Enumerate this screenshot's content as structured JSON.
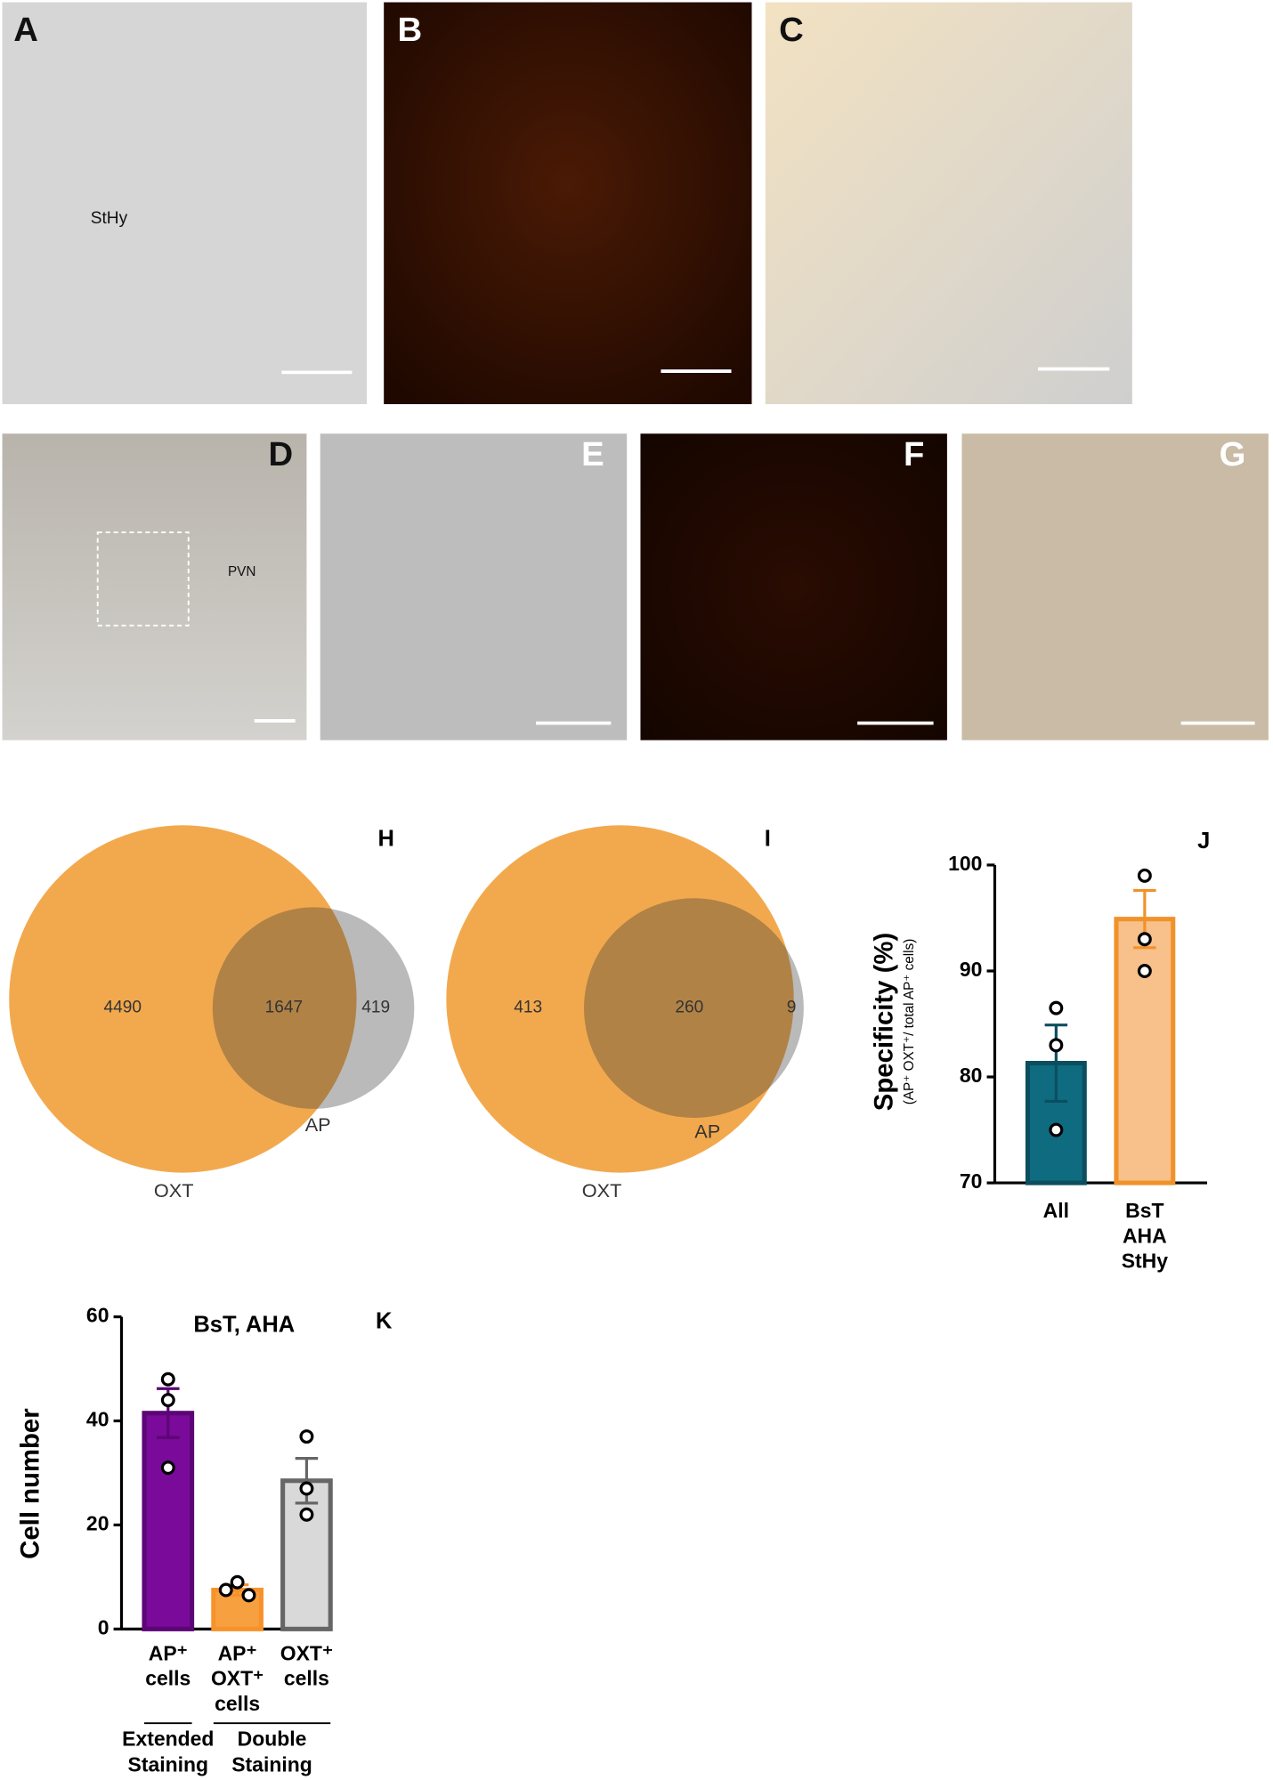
{
  "image_panels": [
    {
      "label": "A",
      "annotation": "StHy"
    },
    {
      "label": "B"
    },
    {
      "label": "C"
    },
    {
      "label": "D",
      "annotation": "PVN"
    },
    {
      "label": "E"
    },
    {
      "label": "F"
    },
    {
      "label": "G"
    }
  ],
  "chart_data": [
    {
      "type": "venn",
      "label": "H",
      "sets": [
        {
          "name": "OXT",
          "color": "#f2a94e"
        },
        {
          "name": "AP",
          "color": "#3a3a3a"
        }
      ],
      "values": [
        4490,
        1647,
        419
      ]
    },
    {
      "type": "venn",
      "label": "I",
      "sets": [
        {
          "name": "OXT",
          "color": "#f2a94e"
        },
        {
          "name": "AP",
          "color": "#3a3a3a"
        }
      ],
      "values": [
        413,
        260,
        9
      ]
    },
    {
      "type": "bar",
      "label": "J",
      "y_label": "Specificity (%)",
      "y_sublabel": "(AP⁺ OXT⁺/ total AP⁺ cells)",
      "categories": [
        "All",
        "BsT AHA StHy"
      ],
      "values": [
        81.3,
        94.9
      ],
      "errors": [
        3.6,
        2.7
      ],
      "points": [
        [
          86.5,
          83,
          75
        ],
        [
          99,
          93,
          90
        ]
      ],
      "colors": [
        "#0e6b80",
        "#f8c08a"
      ],
      "edge_colors": [
        "#0b4f5f",
        "#f0922a"
      ],
      "ylim": [
        70,
        100
      ],
      "yticks": [
        70,
        80,
        90,
        100
      ]
    },
    {
      "type": "bar",
      "label": "K",
      "title": "BsT, AHA",
      "y_label": "Cell number",
      "categories": [
        "AP⁺ cells",
        "AP⁺ OXT⁺ cells",
        "OXT⁺ cells"
      ],
      "values": [
        41.5,
        7.5,
        28.5
      ],
      "errors": [
        4.7,
        1,
        4.3
      ],
      "points": [
        [
          48,
          44,
          31
        ],
        [
          9,
          6.5,
          7.5
        ],
        [
          37,
          27,
          22
        ]
      ],
      "colors": [
        "#7a0a99",
        "#f7a040",
        "#d9d9d9"
      ],
      "edge_colors": [
        "#5c0675",
        "#f7922a",
        "#666666"
      ],
      "ylim": [
        0,
        60
      ],
      "yticks": [
        0,
        20,
        40,
        60
      ],
      "groups": [
        {
          "name": "Extended Staining",
          "categories": [
            "AP⁺ cells"
          ]
        },
        {
          "name": "Double Staining",
          "categories": [
            "AP⁺ OXT⁺ cells",
            "OXT⁺ cells"
          ]
        }
      ]
    }
  ]
}
